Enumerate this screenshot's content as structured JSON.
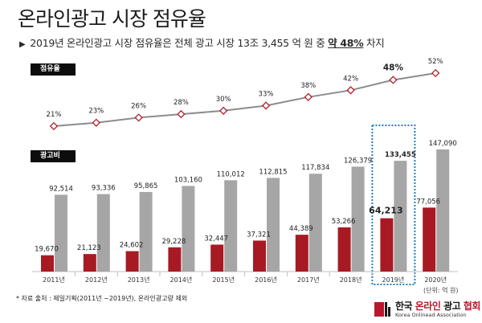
{
  "title": "온라인광고 시장 점유율",
  "subtitle": {
    "bullet": "▶",
    "text": "2019년 온라인광고 시장 점유율은 전체 광고 시장 13조 3,455 억 원 중 ",
    "highlight": "약 48%",
    "suffix": " 차지"
  },
  "share_label": "점유율",
  "cost_label": "광고비",
  "note": "* 자료 출처 : 제일기획(2011년 ~2019년), 온라인광고량 제외",
  "unit": "(단위: 억 원)",
  "logo": {
    "ko_1": "한국 ",
    "ko_red": "온라인",
    "ko_2": " 광고 ",
    "ko_red2": "협회",
    "en": "Korea Onlinead Association"
  },
  "colors": {
    "online_bar": "#a81a23",
    "total_bar": "#a6a6a6",
    "line": "#8c8c8c",
    "marker": "#b0202a",
    "highlight_box": "#1f7fc0"
  },
  "chart_data": [
    {
      "type": "line",
      "label": "점유율",
      "categories": [
        "2011년",
        "2012년",
        "2013년",
        "2014년",
        "2015년",
        "2016년",
        "2017년",
        "2018년",
        "2019년",
        "2020년"
      ],
      "values": [
        21,
        23,
        26,
        28,
        30,
        33,
        38,
        42,
        48,
        52
      ],
      "value_labels": [
        "21%",
        "23%",
        "26%",
        "28%",
        "30%",
        "33%",
        "38%",
        "42%",
        "48%",
        "52%"
      ],
      "highlight_index": 8
    },
    {
      "type": "bar",
      "label": "광고비",
      "categories": [
        "2011년",
        "2012년",
        "2013년",
        "2014년",
        "2015년",
        "2016년",
        "2017년",
        "2018년",
        "2019년",
        "2020년"
      ],
      "series": [
        {
          "values": [
            19670,
            21123,
            24602,
            29228,
            32447,
            37321,
            44389,
            53266,
            64213,
            77056
          ],
          "labels": [
            "19,670",
            "21,123",
            "24,602",
            "29,228",
            "32,447",
            "37,321",
            "44,389",
            "53,266",
            "64,213",
            "77,056"
          ]
        },
        {
          "values": [
            92514,
            93336,
            95865,
            103160,
            110012,
            112815,
            117834,
            126379,
            133455,
            147090
          ],
          "labels": [
            "92,514",
            "93,336",
            "95,865",
            "103,160",
            "110,012",
            "112,815",
            "117,834",
            "126,379",
            "133,455",
            "147,090"
          ]
        }
      ],
      "unit": "억 원",
      "highlight_index": 8
    }
  ]
}
